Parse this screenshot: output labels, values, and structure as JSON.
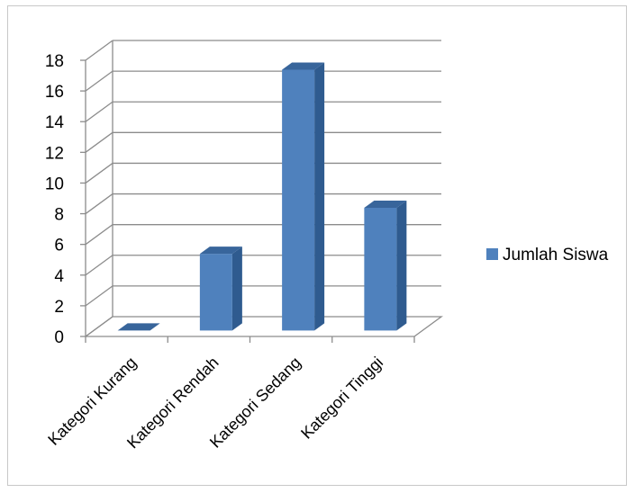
{
  "chart_data": {
    "type": "bar",
    "style": "3d-column",
    "categories": [
      "Kategori Kurang",
      "Kategori Rendah",
      "Kategori Sedang",
      "Kategori Tinggi"
    ],
    "series": [
      {
        "name": "Jumlah Siswa",
        "values": [
          0,
          5,
          17,
          8
        ],
        "color": "#4f81bd"
      }
    ],
    "title": "",
    "xlabel": "",
    "ylabel": "",
    "ylim": [
      0,
      18
    ],
    "yticks": [
      0,
      2,
      4,
      6,
      8,
      10,
      12,
      14,
      16,
      18
    ],
    "grid": true,
    "legend_position": "right"
  }
}
